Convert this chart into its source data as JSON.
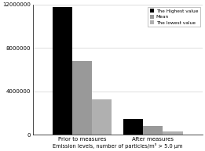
{
  "categories": [
    "Prior to measures",
    "After measures"
  ],
  "series": [
    {
      "label": "The Highest value",
      "values": [
        11800000,
        1500000
      ],
      "color": "#000000"
    },
    {
      "label": "Mean",
      "values": [
        6800000,
        800000
      ],
      "color": "#999999"
    },
    {
      "label": "The lowest value",
      "values": [
        3300000,
        350000
      ],
      "color": "#b0b0b0"
    }
  ],
  "ylim": [
    0,
    12000000
  ],
  "yticks": [
    0,
    4000000,
    8000000,
    12000000
  ],
  "ytick_labels": [
    "0",
    "4000000",
    "8000000",
    "12000000"
  ],
  "xlabel": "Emission levels, number of particles/m³ > 5.0 μm",
  "background_color": "#ffffff",
  "grid_color": "#d0d0d0",
  "figsize": [
    2.61,
    1.93
  ],
  "dpi": 100
}
